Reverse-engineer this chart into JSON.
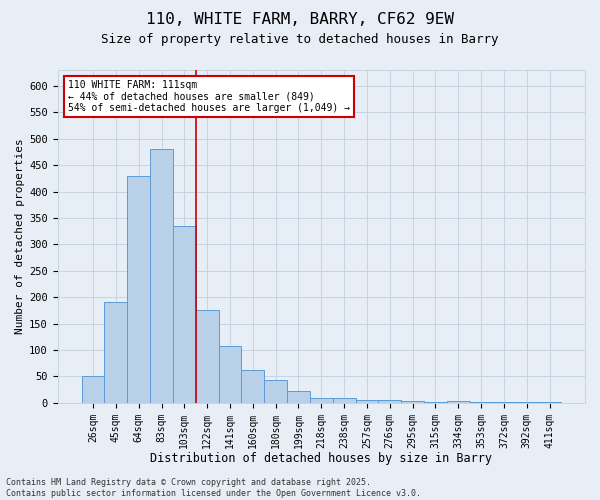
{
  "title": "110, WHITE FARM, BARRY, CF62 9EW",
  "subtitle": "Size of property relative to detached houses in Barry",
  "xlabel": "Distribution of detached houses by size in Barry",
  "ylabel": "Number of detached properties",
  "categories": [
    "26sqm",
    "45sqm",
    "64sqm",
    "83sqm",
    "103sqm",
    "122sqm",
    "141sqm",
    "160sqm",
    "180sqm",
    "199sqm",
    "218sqm",
    "238sqm",
    "257sqm",
    "276sqm",
    "295sqm",
    "315sqm",
    "334sqm",
    "353sqm",
    "372sqm",
    "392sqm",
    "411sqm"
  ],
  "values": [
    50,
    190,
    430,
    480,
    335,
    175,
    108,
    62,
    44,
    22,
    10,
    10,
    6,
    6,
    4,
    2,
    4,
    2,
    2,
    1,
    1
  ],
  "bar_color": "#b8d0e8",
  "bar_edge_color": "#5b9bd5",
  "grid_color": "#c8d4e4",
  "background_color": "#e8eef6",
  "vline_x_index": 4,
  "vline_color": "#cc0000",
  "annotation_line1": "110 WHITE FARM: 111sqm",
  "annotation_line2": "← 44% of detached houses are smaller (849)",
  "annotation_line3": "54% of semi-detached houses are larger (1,049) →",
  "annotation_box_facecolor": "#ffffff",
  "annotation_box_edgecolor": "#cc0000",
  "footer": "Contains HM Land Registry data © Crown copyright and database right 2025.\nContains public sector information licensed under the Open Government Licence v3.0.",
  "ylim_max": 630,
  "yticks": [
    0,
    50,
    100,
    150,
    200,
    250,
    300,
    350,
    400,
    450,
    500,
    550,
    600
  ]
}
